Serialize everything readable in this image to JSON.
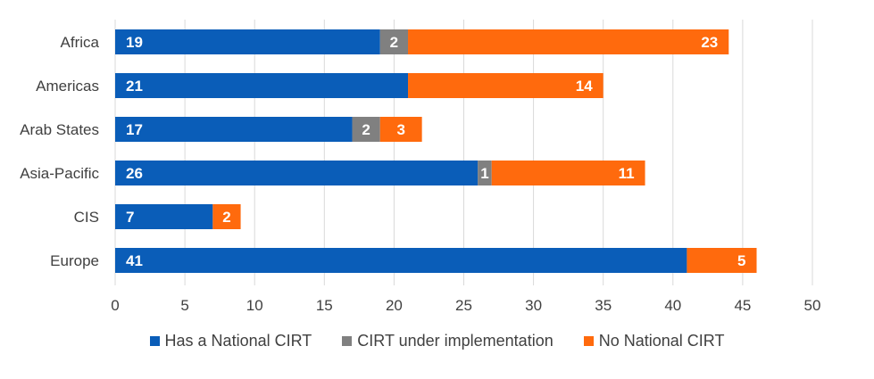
{
  "chart_data": {
    "type": "bar",
    "orientation": "horizontal",
    "stacked": true,
    "categories": [
      "Africa",
      "Americas",
      "Arab States",
      "Asia-Pacific",
      "CIS",
      "Europe"
    ],
    "series": [
      {
        "name": "Has a National CIRT",
        "values": [
          19,
          21,
          17,
          26,
          7,
          41
        ],
        "color": "#0A5DB8"
      },
      {
        "name": "CIRT under implementation",
        "values": [
          2,
          0,
          2,
          1,
          0,
          0
        ],
        "color": "#808080"
      },
      {
        "name": "No National CIRT",
        "values": [
          23,
          14,
          3,
          11,
          2,
          5
        ],
        "color": "#FF6A0D"
      }
    ],
    "xlim": [
      0,
      50
    ],
    "xticks": [
      0,
      5,
      10,
      15,
      20,
      25,
      30,
      35,
      40,
      45,
      50
    ],
    "grid": "vertical",
    "legend_position": "bottom"
  }
}
